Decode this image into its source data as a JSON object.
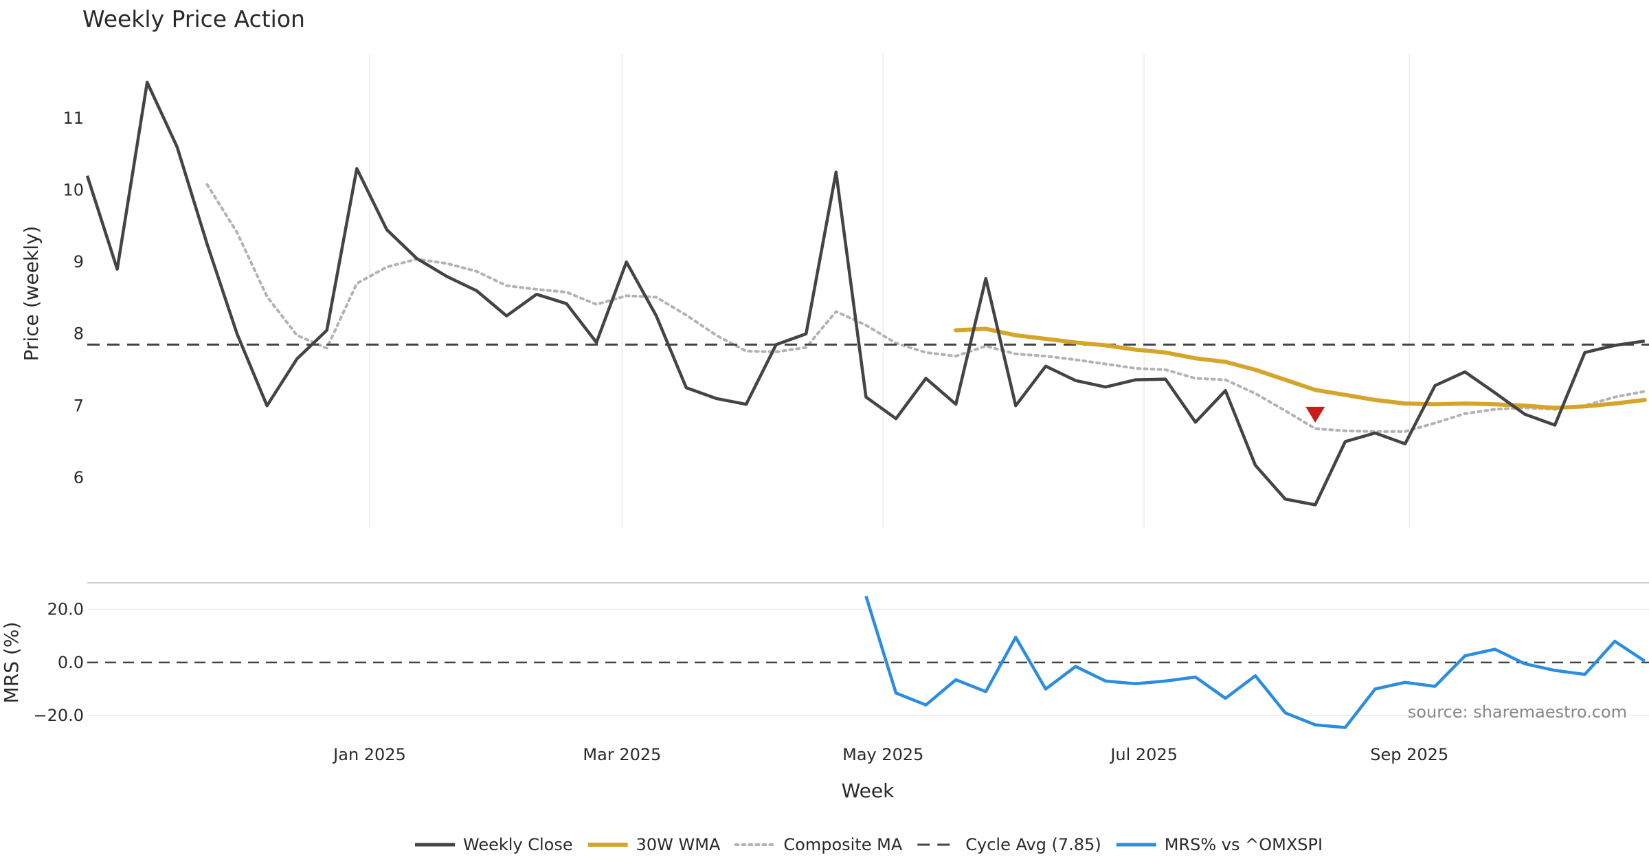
{
  "chart_data": {
    "type": "line",
    "title": "Weekly Price Action",
    "xlabel": "Week",
    "source": "source: sharemaestro.com",
    "colors": {
      "close": "#444444",
      "wma": "#d4a52a",
      "composite": "#b3b3b3",
      "cycle": "#444444",
      "mrs": "#2b8de0",
      "signal": "#cc1b1b",
      "grid": "#ececec",
      "divider": "#cfcfcf"
    },
    "x_ticks": [
      {
        "label": "Jan 2025",
        "date": "2025-01-01"
      },
      {
        "label": "Mar 2025",
        "date": "2025-03-01"
      },
      {
        "label": "May 2025",
        "date": "2025-05-01"
      },
      {
        "label": "Jul 2025",
        "date": "2025-07-01"
      },
      {
        "label": "Sep 2025",
        "date": "2025-09-01"
      }
    ],
    "xlim": [
      "2024-10-27",
      "2025-10-27"
    ],
    "price_panel": {
      "ylabel": "Price (weekly)",
      "ylim": [
        5.3,
        11.9
      ],
      "y_ticks": [
        6,
        7,
        8,
        9,
        10,
        11
      ],
      "dates": [
        "2024-10-27",
        "2024-11-03",
        "2024-11-10",
        "2024-11-17",
        "2024-11-24",
        "2024-12-01",
        "2024-12-08",
        "2024-12-15",
        "2024-12-22",
        "2024-12-29",
        "2025-01-05",
        "2025-01-12",
        "2025-01-19",
        "2025-01-26",
        "2025-02-02",
        "2025-02-09",
        "2025-02-16",
        "2025-02-23",
        "2025-03-02",
        "2025-03-09",
        "2025-03-16",
        "2025-03-23",
        "2025-03-30",
        "2025-04-06",
        "2025-04-13",
        "2025-04-20",
        "2025-04-27",
        "2025-05-04",
        "2025-05-11",
        "2025-05-18",
        "2025-05-25",
        "2025-06-01",
        "2025-06-08",
        "2025-06-15",
        "2025-06-22",
        "2025-06-29",
        "2025-07-06",
        "2025-07-13",
        "2025-07-20",
        "2025-07-27",
        "2025-08-03",
        "2025-08-10",
        "2025-08-17",
        "2025-08-24",
        "2025-08-31",
        "2025-09-07",
        "2025-09-14",
        "2025-09-21",
        "2025-09-28",
        "2025-10-05",
        "2025-10-12",
        "2025-10-19",
        "2025-10-26"
      ],
      "series": [
        {
          "name": "Weekly Close",
          "key": "close",
          "values": [
            10.2,
            8.9,
            11.5,
            10.6,
            9.25,
            8.0,
            7.0,
            7.65,
            8.05,
            10.3,
            9.45,
            9.05,
            8.8,
            8.6,
            8.25,
            8.55,
            8.42,
            7.88,
            9.0,
            8.25,
            7.25,
            7.1,
            7.02,
            7.85,
            8.0,
            10.25,
            7.12,
            6.82,
            7.38,
            7.02,
            8.77,
            7.0,
            7.55,
            7.35,
            7.26,
            7.36,
            7.37,
            6.77,
            7.21,
            6.17,
            5.7,
            5.62,
            6.5,
            6.62,
            6.47,
            7.28,
            7.47,
            7.18,
            6.88,
            6.73,
            7.74,
            7.84,
            7.9
          ]
        },
        {
          "name": "Composite MA",
          "key": "composite",
          "values": [
            null,
            null,
            null,
            null,
            10.08,
            9.41,
            8.52,
            7.98,
            7.8,
            8.7,
            8.93,
            9.04,
            8.98,
            8.87,
            8.67,
            8.62,
            8.58,
            8.41,
            8.53,
            8.51,
            8.26,
            7.98,
            7.76,
            7.75,
            7.81,
            8.31,
            8.12,
            7.87,
            7.74,
            7.69,
            7.83,
            7.72,
            7.69,
            7.64,
            7.58,
            7.52,
            7.5,
            7.38,
            7.36,
            7.17,
            6.93,
            6.68,
            6.65,
            6.64,
            6.64,
            6.76,
            6.89,
            6.95,
            6.97,
            6.95,
            7.0,
            7.12,
            7.2
          ]
        },
        {
          "name": "30W WMA",
          "key": "wma",
          "values": [
            null,
            null,
            null,
            null,
            null,
            null,
            null,
            null,
            null,
            null,
            null,
            null,
            null,
            null,
            null,
            null,
            null,
            null,
            null,
            null,
            null,
            null,
            null,
            null,
            null,
            null,
            null,
            null,
            null,
            8.05,
            8.07,
            7.98,
            7.93,
            7.88,
            7.84,
            7.78,
            7.74,
            7.66,
            7.61,
            7.5,
            7.36,
            7.22,
            7.15,
            7.08,
            7.03,
            7.02,
            7.03,
            7.02,
            7.0,
            6.97,
            6.99,
            7.03,
            7.08
          ]
        }
      ],
      "cycle_avg": {
        "name": "Cycle Avg (7.85)",
        "value": 7.85
      },
      "signal_marker": {
        "date": "2025-08-10",
        "value": 6.88,
        "shape": "down-triangle"
      }
    },
    "mrs_panel": {
      "ylabel": "MRS (%)",
      "ylim": [
        -28,
        30
      ],
      "y_ticks": [
        20,
        0,
        -20
      ],
      "y_tick_labels": [
        "20.0",
        "0.0",
        "−20.0"
      ],
      "zero_line": 0,
      "series": [
        {
          "name": "MRS% vs ^OMXSPI",
          "key": "mrs",
          "dates": [
            "2025-04-27",
            "2025-05-04",
            "2025-05-11",
            "2025-05-18",
            "2025-05-25",
            "2025-06-01",
            "2025-06-08",
            "2025-06-15",
            "2025-06-22",
            "2025-06-29",
            "2025-07-06",
            "2025-07-13",
            "2025-07-20",
            "2025-07-27",
            "2025-08-03",
            "2025-08-10",
            "2025-08-17",
            "2025-08-24",
            "2025-08-31",
            "2025-09-07",
            "2025-09-14",
            "2025-09-21",
            "2025-09-28",
            "2025-10-05",
            "2025-10-12",
            "2025-10-19",
            "2025-10-26"
          ],
          "values": [
            25.0,
            -11.5,
            -16.0,
            -6.5,
            -11.0,
            9.5,
            -10.0,
            -1.5,
            -7.0,
            -8.0,
            -7.0,
            -5.5,
            -13.5,
            -5.0,
            -19.0,
            -23.5,
            -24.5,
            -10.0,
            -7.5,
            -9.0,
            2.5,
            5.0,
            -0.5,
            -3.0,
            -4.5,
            8.0,
            0.5
          ]
        }
      ]
    },
    "legend": {
      "placement": "bottom-center",
      "items": [
        {
          "label": "Weekly Close",
          "key": "close",
          "style": "solid"
        },
        {
          "label": "30W WMA",
          "key": "wma",
          "style": "solid-thick"
        },
        {
          "label": "Composite MA",
          "key": "composite",
          "style": "dotted"
        },
        {
          "label": "Cycle Avg (7.85)",
          "key": "cycle",
          "style": "dashed"
        },
        {
          "label": "MRS% vs ^OMXSPI",
          "key": "mrs",
          "style": "solid"
        }
      ]
    }
  }
}
